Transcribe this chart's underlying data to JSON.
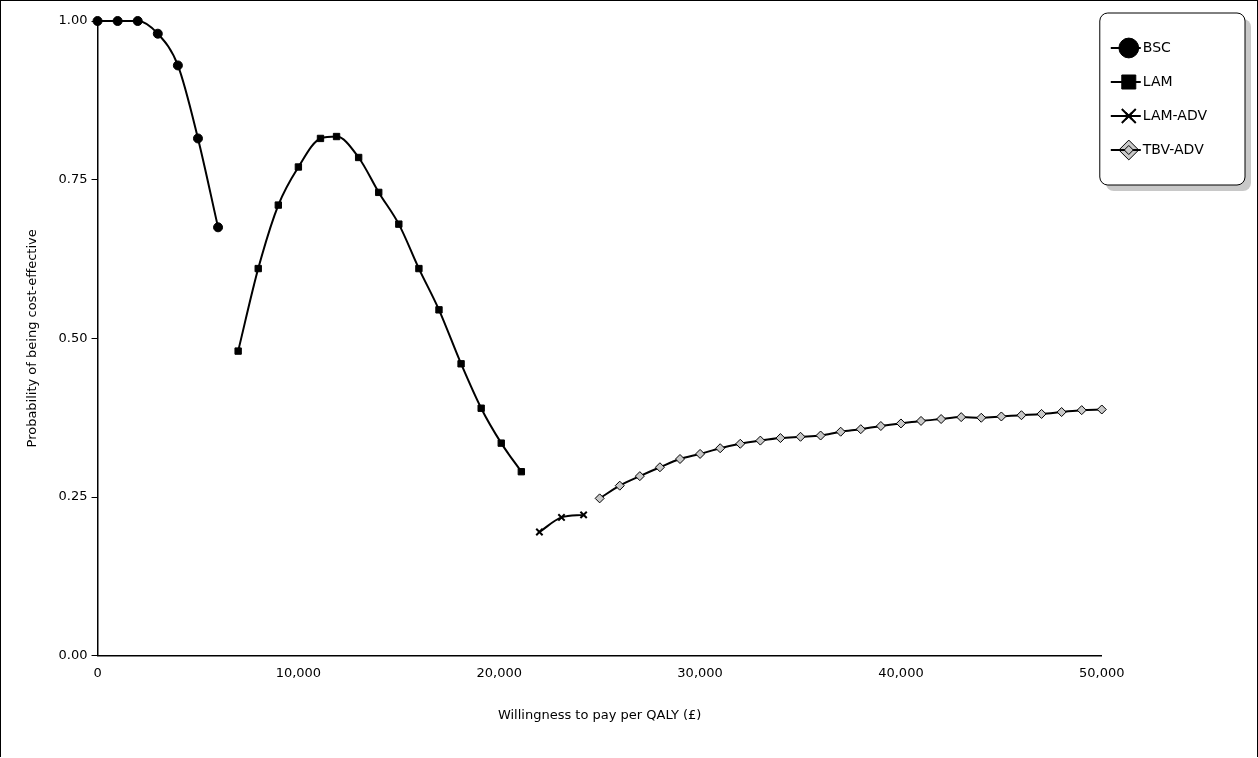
{
  "chart_data": {
    "type": "line",
    "xlabel": "Willingness to pay per QALY (£)",
    "ylabel": "Probability of being cost-effective",
    "xlim": [
      0,
      50000
    ],
    "xticks": [
      {
        "value": 0,
        "label": "0"
      },
      {
        "value": 10000,
        "label": "10,000"
      },
      {
        "value": 20000,
        "label": "20,000"
      },
      {
        "value": 30000,
        "label": "30,000"
      },
      {
        "value": 40000,
        "label": "40,000"
      },
      {
        "value": 50000,
        "label": "50,000"
      }
    ],
    "ylim": [
      0,
      1
    ],
    "yticks": [
      {
        "value": 0,
        "label": "0.00"
      },
      {
        "value": 0.25,
        "label": "0.25"
      },
      {
        "value": 0.5,
        "label": "0.50"
      },
      {
        "value": 0.75,
        "label": "0.75"
      },
      {
        "value": 1,
        "label": "1.00"
      }
    ],
    "grid": false,
    "legend": "right",
    "series": [
      {
        "name": "BSC",
        "color": "#000000",
        "marker": "circle",
        "x": [
          0,
          1000,
          2000,
          3000,
          4000,
          5000,
          6000
        ],
        "values": [
          1.0,
          1.0,
          1.0,
          0.98,
          0.93,
          0.815,
          0.675
        ]
      },
      {
        "name": "LAM",
        "color": "#000000",
        "marker": "square",
        "x": [
          7000,
          8000,
          9000,
          10000,
          11100,
          11900,
          13000,
          14000,
          15000,
          16000,
          17000,
          18100,
          19100,
          20100,
          21100
        ],
        "values": [
          0.48,
          0.61,
          0.71,
          0.77,
          0.815,
          0.818,
          0.785,
          0.73,
          0.68,
          0.61,
          0.545,
          0.46,
          0.39,
          0.335,
          0.29
        ]
      },
      {
        "name": "LAM-ADV",
        "color": "#000000",
        "marker": "cross",
        "x": [
          22000,
          23100,
          24200
        ],
        "values": [
          0.195,
          0.218,
          0.222
        ]
      },
      {
        "name": "TBV-ADV",
        "color": "#000000",
        "marker": "diamond",
        "x": [
          25000,
          26000,
          27000,
          28000,
          29000,
          30000,
          31000,
          32000,
          33000,
          34000,
          35000,
          36000,
          37000,
          38000,
          39000,
          40000,
          41000,
          42000,
          43000,
          44000,
          45000,
          46000,
          47000,
          48000,
          49000,
          50000
        ],
        "values": [
          0.248,
          0.268,
          0.283,
          0.297,
          0.31,
          0.318,
          0.327,
          0.334,
          0.339,
          0.343,
          0.345,
          0.347,
          0.353,
          0.357,
          0.362,
          0.366,
          0.37,
          0.373,
          0.376,
          0.375,
          0.377,
          0.379,
          0.381,
          0.384,
          0.387,
          0.388
        ]
      }
    ]
  }
}
